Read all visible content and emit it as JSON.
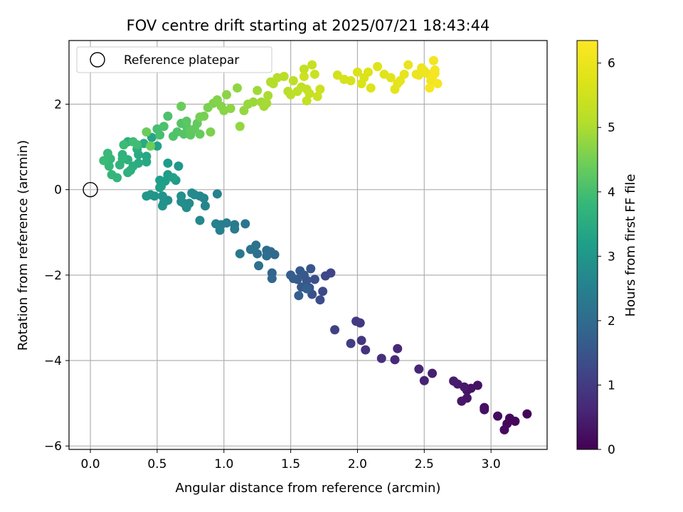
{
  "chart_data": {
    "type": "scatter",
    "title": "FOV centre drift starting at 2025/07/21 18:43:44",
    "xlabel": "Angular distance from reference (arcmin)",
    "ylabel": "Rotation from reference (arcmin)",
    "xlim": [
      -0.16,
      3.42
    ],
    "ylim": [
      -6.08,
      3.49
    ],
    "xticks": [
      0.0,
      0.5,
      1.0,
      1.5,
      2.0,
      2.5,
      3.0
    ],
    "xtick_labels": [
      "0.0",
      "0.5",
      "1.0",
      "1.5",
      "2.0",
      "2.5",
      "3.0"
    ],
    "yticks": [
      -6,
      -4,
      -2,
      0,
      2
    ],
    "ytick_labels": [
      "−6",
      "−4",
      "−2",
      "0",
      "2"
    ],
    "grid": true,
    "legend": {
      "position": "top-left",
      "entries": [
        "Reference platepar"
      ]
    },
    "reference_point": {
      "x": 0.0,
      "y": 0.0
    },
    "colorbar": {
      "label": "Hours from first FF file",
      "range": [
        0,
        6.35
      ],
      "ticks": [
        0,
        1,
        2,
        3,
        4,
        5,
        6
      ],
      "tick_labels": [
        "0",
        "1",
        "2",
        "3",
        "4",
        "5",
        "6"
      ],
      "colormap": "viridis"
    },
    "color_encoding": "hours",
    "points": [
      [
        3.27,
        -5.25,
        0.05
      ],
      [
        3.18,
        -5.42,
        0.08
      ],
      [
        3.14,
        -5.35,
        0.1
      ],
      [
        3.12,
        -5.48,
        0.12
      ],
      [
        3.1,
        -5.62,
        0.15
      ],
      [
        3.05,
        -5.3,
        0.18
      ],
      [
        2.95,
        -5.1,
        0.22
      ],
      [
        2.95,
        -5.15,
        0.25
      ],
      [
        2.9,
        -4.58,
        0.28
      ],
      [
        2.85,
        -4.65,
        0.3
      ],
      [
        2.82,
        -4.7,
        0.32
      ],
      [
        2.82,
        -4.88,
        0.35
      ],
      [
        2.78,
        -4.95,
        0.38
      ],
      [
        2.8,
        -4.62,
        0.4
      ],
      [
        2.75,
        -4.55,
        0.42
      ],
      [
        2.72,
        -4.48,
        0.45
      ],
      [
        2.56,
        -4.3,
        0.5
      ],
      [
        2.5,
        -4.47,
        0.55
      ],
      [
        2.46,
        -4.2,
        0.6
      ],
      [
        2.3,
        -3.72,
        0.65
      ],
      [
        2.28,
        -3.98,
        0.7
      ],
      [
        2.18,
        -3.95,
        0.78
      ],
      [
        2.06,
        -3.75,
        0.85
      ],
      [
        2.03,
        -3.53,
        0.9
      ],
      [
        2.02,
        -3.12,
        0.95
      ],
      [
        1.99,
        -3.08,
        1.0
      ],
      [
        1.95,
        -3.6,
        1.05
      ],
      [
        1.83,
        -3.28,
        1.12
      ],
      [
        1.8,
        -1.95,
        1.2
      ],
      [
        1.76,
        -2.02,
        1.25
      ],
      [
        1.74,
        -2.38,
        1.3
      ],
      [
        1.72,
        -2.58,
        1.35
      ],
      [
        1.68,
        -2.1,
        1.4
      ],
      [
        1.66,
        -2.45,
        1.45
      ],
      [
        1.64,
        -2.3,
        1.5
      ],
      [
        1.65,
        -1.85,
        1.52
      ],
      [
        1.62,
        -2.12,
        1.55
      ],
      [
        1.6,
        -2.0,
        1.58
      ],
      [
        1.58,
        -2.28,
        1.6
      ],
      [
        1.57,
        -1.9,
        1.62
      ],
      [
        1.55,
        -2.1,
        1.65
      ],
      [
        1.52,
        -2.08,
        1.68
      ],
      [
        1.5,
        -2.0,
        1.7
      ],
      [
        1.56,
        -2.48,
        1.72
      ],
      [
        1.62,
        -2.32,
        1.75
      ],
      [
        1.36,
        -1.95,
        1.85
      ],
      [
        1.36,
        -2.08,
        1.88
      ],
      [
        1.38,
        -1.52,
        1.92
      ],
      [
        1.35,
        -1.45,
        1.95
      ],
      [
        1.32,
        -1.42,
        2.0
      ],
      [
        1.32,
        -1.55,
        2.05
      ],
      [
        1.26,
        -1.78,
        2.1
      ],
      [
        1.25,
        -1.5,
        2.12
      ],
      [
        1.24,
        -1.3,
        2.15
      ],
      [
        1.2,
        -1.4,
        2.2
      ],
      [
        1.16,
        -0.8,
        2.25
      ],
      [
        1.12,
        -1.5,
        2.3
      ],
      [
        1.08,
        -0.82,
        2.35
      ],
      [
        1.08,
        -0.92,
        2.38
      ],
      [
        1.02,
        -0.78,
        2.42
      ],
      [
        0.98,
        -0.82,
        2.45
      ],
      [
        0.97,
        -0.95,
        2.48
      ],
      [
        0.94,
        -0.8,
        2.5
      ],
      [
        0.95,
        -0.1,
        2.55
      ],
      [
        0.86,
        -0.38,
        2.6
      ],
      [
        0.85,
        -0.2,
        2.62
      ],
      [
        0.82,
        -0.15,
        2.65
      ],
      [
        0.82,
        -0.72,
        2.68
      ],
      [
        0.78,
        -0.12,
        2.7
      ],
      [
        0.76,
        -0.08,
        2.72
      ],
      [
        0.74,
        -0.32,
        2.75
      ],
      [
        0.72,
        -0.42,
        2.78
      ],
      [
        0.7,
        -0.32,
        2.8
      ],
      [
        0.68,
        -0.28,
        2.82
      ],
      [
        0.68,
        -0.15,
        2.85
      ],
      [
        0.58,
        -0.25,
        2.88
      ],
      [
        0.55,
        -0.3,
        2.9
      ],
      [
        0.54,
        -0.38,
        2.92
      ],
      [
        0.54,
        -0.15,
        2.95
      ],
      [
        0.48,
        -0.15,
        2.98
      ],
      [
        0.45,
        -0.12,
        3.0
      ],
      [
        0.42,
        -0.15,
        3.02
      ],
      [
        0.66,
        0.55,
        3.05
      ],
      [
        0.64,
        0.22,
        3.08
      ],
      [
        0.58,
        0.62,
        3.1
      ],
      [
        0.58,
        0.35,
        3.12
      ],
      [
        0.56,
        0.2,
        3.15
      ],
      [
        0.52,
        0.05,
        3.18
      ],
      [
        0.52,
        0.22,
        3.2
      ],
      [
        0.53,
        0.08,
        3.22
      ],
      [
        0.62,
        0.28,
        3.25
      ],
      [
        0.5,
        1.02,
        3.3
      ],
      [
        0.46,
        1.22,
        3.35
      ],
      [
        0.42,
        0.78,
        3.4
      ],
      [
        0.42,
        0.65,
        3.42
      ],
      [
        0.4,
        1.08,
        3.45
      ],
      [
        0.36,
        0.82,
        3.48
      ],
      [
        0.36,
        0.62,
        3.5
      ],
      [
        0.35,
        0.95,
        3.52
      ],
      [
        0.32,
        0.55,
        3.55
      ],
      [
        0.3,
        0.45,
        3.58
      ],
      [
        0.28,
        1.12,
        3.6
      ],
      [
        0.28,
        0.7,
        3.62
      ],
      [
        0.28,
        0.4,
        3.65
      ],
      [
        0.24,
        0.82,
        3.68
      ],
      [
        0.24,
        0.72,
        3.7
      ],
      [
        0.22,
        0.58,
        3.72
      ],
      [
        0.2,
        0.28,
        3.75
      ],
      [
        0.16,
        0.35,
        3.78
      ],
      [
        0.15,
        0.72,
        3.8
      ],
      [
        0.14,
        0.55,
        3.82
      ],
      [
        0.13,
        0.85,
        3.85
      ],
      [
        0.1,
        0.68,
        3.88
      ],
      [
        0.25,
        1.05,
        3.9
      ],
      [
        0.35,
        1.05,
        3.92
      ],
      [
        0.32,
        1.12,
        3.95
      ],
      [
        0.5,
        1.42,
        4.0
      ],
      [
        0.52,
        1.28,
        4.02
      ],
      [
        0.55,
        1.48,
        4.05
      ],
      [
        0.58,
        1.72,
        4.08
      ],
      [
        0.62,
        1.25,
        4.1
      ],
      [
        0.65,
        1.35,
        4.12
      ],
      [
        0.68,
        1.55,
        4.15
      ],
      [
        0.7,
        1.3,
        4.18
      ],
      [
        0.72,
        1.48,
        4.2
      ],
      [
        0.72,
        1.6,
        4.22
      ],
      [
        0.75,
        1.28,
        4.25
      ],
      [
        0.75,
        1.38,
        4.28
      ],
      [
        0.78,
        1.42,
        4.3
      ],
      [
        0.8,
        1.55,
        4.32
      ],
      [
        0.82,
        1.3,
        4.35
      ],
      [
        0.68,
        1.95,
        4.38
      ],
      [
        0.42,
        1.35,
        4.4
      ],
      [
        0.45,
        1.02,
        4.42
      ],
      [
        0.82,
        1.7,
        4.5
      ],
      [
        0.85,
        1.72,
        4.52
      ],
      [
        0.88,
        1.92,
        4.55
      ],
      [
        0.9,
        1.35,
        4.58
      ],
      [
        0.92,
        2.02,
        4.6
      ],
      [
        0.95,
        2.1,
        4.62
      ],
      [
        0.98,
        1.95,
        4.65
      ],
      [
        1.0,
        1.85,
        4.68
      ],
      [
        1.02,
        2.22,
        4.7
      ],
      [
        1.05,
        1.9,
        4.72
      ],
      [
        1.1,
        2.38,
        4.75
      ],
      [
        1.12,
        1.48,
        4.78
      ],
      [
        1.15,
        1.85,
        4.8
      ],
      [
        1.18,
        2.0,
        4.82
      ],
      [
        1.22,
        2.05,
        4.85
      ],
      [
        1.25,
        2.32,
        4.88
      ],
      [
        1.28,
        2.05,
        4.9
      ],
      [
        1.3,
        1.95,
        4.92
      ],
      [
        1.32,
        2.02,
        4.95
      ],
      [
        1.33,
        2.2,
        4.98
      ],
      [
        1.35,
        2.52,
        5.05
      ],
      [
        1.37,
        2.48,
        5.08
      ],
      [
        1.4,
        2.62,
        5.1
      ],
      [
        1.45,
        2.65,
        5.12
      ],
      [
        1.48,
        2.3,
        5.15
      ],
      [
        1.5,
        2.22,
        5.18
      ],
      [
        1.52,
        2.55,
        5.2
      ],
      [
        1.55,
        2.3,
        5.22
      ],
      [
        1.58,
        2.4,
        5.25
      ],
      [
        1.6,
        2.82,
        5.28
      ],
      [
        1.62,
        2.35,
        5.3
      ],
      [
        1.62,
        2.08,
        5.32
      ],
      [
        1.64,
        2.25,
        5.35
      ],
      [
        1.66,
        2.92,
        5.38
      ],
      [
        1.68,
        2.7,
        5.4
      ],
      [
        1.7,
        2.18,
        5.42
      ],
      [
        1.72,
        2.35,
        5.45
      ],
      [
        1.6,
        2.65,
        5.48
      ],
      [
        1.85,
        2.68,
        5.55
      ],
      [
        1.9,
        2.58,
        5.6
      ],
      [
        1.95,
        2.55,
        5.62
      ],
      [
        2.0,
        2.75,
        5.65
      ],
      [
        2.03,
        2.48,
        5.68
      ],
      [
        2.05,
        2.62,
        5.7
      ],
      [
        2.08,
        2.75,
        5.72
      ],
      [
        2.1,
        2.38,
        5.75
      ],
      [
        2.15,
        2.88,
        5.78
      ],
      [
        2.2,
        2.7,
        5.8
      ],
      [
        2.25,
        2.62,
        5.82
      ],
      [
        2.28,
        2.35,
        5.85
      ],
      [
        2.3,
        2.48,
        5.88
      ],
      [
        2.32,
        2.55,
        5.9
      ],
      [
        2.35,
        2.7,
        5.92
      ],
      [
        2.38,
        2.92,
        5.95
      ],
      [
        2.44,
        2.7,
        5.98
      ],
      [
        2.46,
        2.68,
        6.0
      ],
      [
        2.48,
        2.85,
        6.02
      ],
      [
        2.5,
        2.78,
        6.05
      ],
      [
        2.52,
        2.72,
        6.08
      ],
      [
        2.55,
        2.55,
        6.1
      ],
      [
        2.57,
        3.02,
        6.12
      ],
      [
        2.58,
        2.8,
        6.15
      ],
      [
        2.58,
        2.72,
        6.18
      ],
      [
        2.6,
        2.48,
        6.2
      ],
      [
        2.56,
        2.62,
        6.22
      ],
      [
        2.54,
        2.38,
        6.25
      ]
    ]
  }
}
